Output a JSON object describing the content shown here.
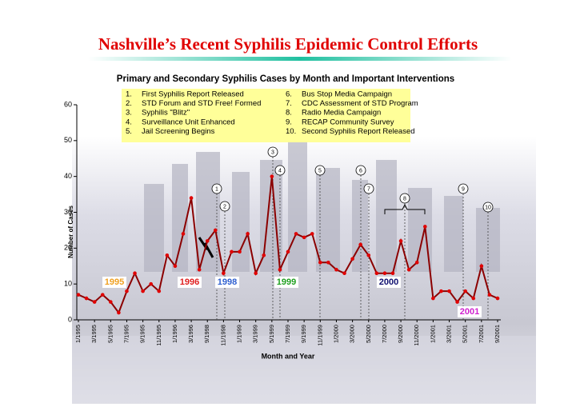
{
  "chart_data": {
    "type": "line",
    "title": "Nashville’s Recent Syphilis Epidemic Control Efforts",
    "subtitle": "Primary and Secondary Syphilis Cases by Month and Important Interventions",
    "y_label": "Number of Cases",
    "x_label": "Month and Year",
    "categories": [
      "1/1995",
      null,
      "3/1995",
      null,
      "5/1995",
      null,
      "7/1995",
      null,
      "9/1995",
      null,
      "11/1995",
      null,
      "1/1996",
      null,
      "3/1996",
      null,
      "9/1998",
      null,
      "11/1998",
      null,
      "1/1999",
      null,
      "3/1999",
      null,
      "5/1999",
      null,
      "7/1999",
      null,
      "9/1999",
      null,
      "11/1999",
      null,
      "1/2000",
      null,
      "3/2000",
      null,
      "5/2000",
      null,
      "7/2000",
      null,
      "9/2000",
      null,
      "11/2000",
      null,
      "1/2001",
      null,
      "3/2001",
      null,
      "5/2001",
      null,
      "7/2001",
      null,
      "9/2001"
    ],
    "series": [
      {
        "name": "Cases",
        "color": "#8b0000",
        "marker_color": "#e00000",
        "values": [
          7,
          6,
          5,
          7,
          5,
          2,
          8,
          13,
          8,
          10,
          8,
          18,
          15,
          24,
          34,
          14,
          22,
          25,
          13,
          19,
          19,
          24,
          13,
          18,
          40,
          14,
          19,
          24,
          23,
          24,
          16,
          16,
          14,
          13,
          17,
          21,
          18,
          13,
          13,
          13,
          22,
          14,
          16,
          26,
          6,
          8,
          8,
          5,
          8,
          6,
          15,
          7,
          6
        ]
      }
    ],
    "ylim": [
      0,
      60
    ],
    "yticks": [
      0,
      10,
      20,
      30,
      40,
      50,
      60
    ],
    "grid": false,
    "year_labels": [
      {
        "text": "1995",
        "color": "#f0a020"
      },
      {
        "text": "1996",
        "color": "#e02020"
      },
      {
        "text": "1998",
        "color": "#3060d0"
      },
      {
        "text": "1999",
        "color": "#20a020"
      },
      {
        "text": "2000",
        "color": "#101070"
      },
      {
        "text": "2001",
        "color": "#d020d0"
      }
    ],
    "interventions": [
      {
        "number": "1.",
        "text": "First Syphilis Report Released"
      },
      {
        "number": "2.",
        "text": "STD Forum and STD Free! Formed"
      },
      {
        "number": "3.",
        "text": "Syphilis \"Blitz\""
      },
      {
        "number": "4.",
        "text": "Surveillance Unit Enhanced"
      },
      {
        "number": "5.",
        "text": "Jail Screening Begins"
      },
      {
        "number": "6.",
        "text": "Bus Stop Media Campaign"
      },
      {
        "number": "7.",
        "text": "CDC Assessment of STD Program"
      },
      {
        "number": "8.",
        "text": "Radio Media Campaign"
      },
      {
        "number": "9.",
        "text": "RECAP Community Survey"
      },
      {
        "number": "10.",
        "text": "Second Syphilis Report Released"
      }
    ],
    "markers": [
      "1",
      "2",
      "3",
      "4",
      "5",
      "6",
      "7",
      "8",
      "9",
      "10"
    ]
  }
}
